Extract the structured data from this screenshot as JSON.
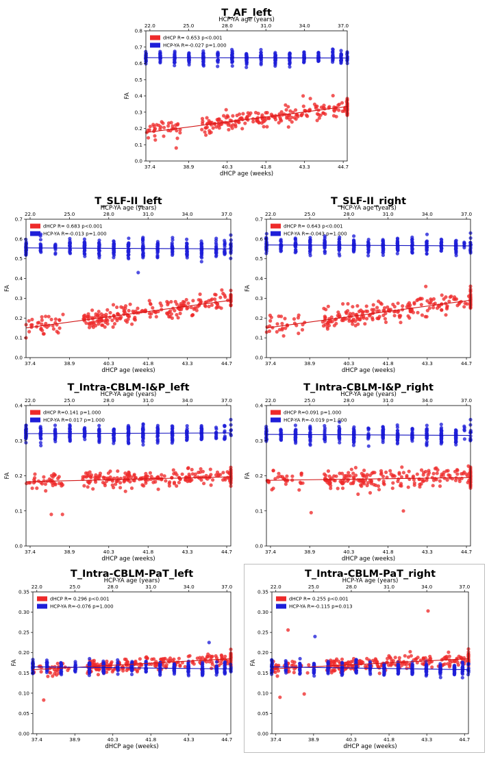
{
  "colors": {
    "dhcp": "#ee2a2a",
    "hcp": "#1f1fd8",
    "dhcp_line": "#d11414",
    "hcp_line": "#1010c0"
  },
  "chart_data": [
    {
      "id": "af_left",
      "type": "scatter",
      "title": "T_AF_left",
      "xlabel": "dHCP age (weeks)",
      "x2label": "HCP-YA age (years)",
      "ylabel": "FA",
      "xlim": [
        37.4,
        44.7
      ],
      "ylim": [
        0.0,
        0.8
      ],
      "xticks": [
        "37.4",
        "38.9",
        "40.3",
        "41.8",
        "43.3",
        "44.7"
      ],
      "x2lim": [
        22.0,
        37.0
      ],
      "x2ticks": [
        "22.0",
        "25.0",
        "28.0",
        "31.0",
        "34.0",
        "37.0"
      ],
      "yticks": [
        "0.0",
        "0.1",
        "0.2",
        "0.3",
        "0.4",
        "0.5",
        "0.6",
        "0.7",
        "0.8"
      ],
      "legend_position": "top-left",
      "series": [
        {
          "name": "dHCP",
          "label": "dHCP R= 0.653 p<0.001",
          "color": "#ee2a2a",
          "fit": [
            0.175,
            0.335
          ],
          "spread": 0.05,
          "n": 260,
          "outliers": [
            [
              38.5,
              0.08
            ],
            [
              43.1,
              0.4
            ]
          ]
        },
        {
          "name": "HCP-YA",
          "label": "HCP-YA R=-0.027 p=1.000",
          "color": "#1f1fd8",
          "fit": [
            0.635,
            0.633
          ],
          "spread": 0.035,
          "n": 380,
          "outliers": [
            [
              44.7,
              0.67
            ]
          ]
        }
      ]
    },
    {
      "id": "slf2_left",
      "type": "scatter",
      "title": "T_SLF-II_left",
      "xlabel": "dHCP age (weeks)",
      "x2label": "HCP-YA age (years)",
      "ylabel": "FA",
      "xlim": [
        37.4,
        44.7
      ],
      "ylim": [
        0.0,
        0.7
      ],
      "xticks": [
        "37.4",
        "38.9",
        "40.3",
        "41.8",
        "43.3",
        "44.7"
      ],
      "x2lim": [
        22.0,
        37.0
      ],
      "x2ticks": [
        "22.0",
        "25.0",
        "28.0",
        "31.0",
        "34.0",
        "37.0"
      ],
      "yticks": [
        "0.0",
        "0.1",
        "0.2",
        "0.3",
        "0.4",
        "0.5",
        "0.6",
        "0.7"
      ],
      "legend_position": "top-left",
      "series": [
        {
          "name": "dHCP",
          "label": "dHCP R= 0.683 p<0.001",
          "color": "#ee2a2a",
          "fit": [
            0.15,
            0.29
          ],
          "spread": 0.045,
          "n": 260,
          "outliers": [
            [
              37.4,
              0.1
            ]
          ]
        },
        {
          "name": "HCP-YA",
          "label": "HCP-YA R=-0.013 p=1.000",
          "color": "#1f1fd8",
          "fit": [
            0.555,
            0.55
          ],
          "spread": 0.04,
          "n": 380,
          "outliers": [
            [
              41.4,
              0.43
            ],
            [
              44.7,
              0.62
            ]
          ]
        }
      ]
    },
    {
      "id": "slf2_right",
      "type": "scatter",
      "title": "T_SLF-II_right",
      "xlabel": "dHCP age (weeks)",
      "x2label": "HCP-YA age (years)",
      "ylabel": "FA",
      "xlim": [
        37.4,
        44.7
      ],
      "ylim": [
        0.0,
        0.7
      ],
      "xticks": [
        "37.4",
        "38.9",
        "40.3",
        "41.8",
        "43.3",
        "44.7"
      ],
      "x2lim": [
        22.0,
        37.0
      ],
      "x2ticks": [
        "22.0",
        "25.0",
        "28.0",
        "31.0",
        "34.0",
        "37.0"
      ],
      "yticks": [
        "0.0",
        "0.1",
        "0.2",
        "0.3",
        "0.4",
        "0.5",
        "0.6",
        "0.7"
      ],
      "legend_position": "top-left",
      "series": [
        {
          "name": "dHCP",
          "label": "dHCP R= 0.643 p<0.001",
          "color": "#ee2a2a",
          "fit": [
            0.15,
            0.29
          ],
          "spread": 0.045,
          "n": 260,
          "outliers": [
            [
              43.1,
              0.36
            ]
          ]
        },
        {
          "name": "HCP-YA",
          "label": "HCP-YA R=-0.043 p=1.000",
          "color": "#1f1fd8",
          "fit": [
            0.57,
            0.565
          ],
          "spread": 0.035,
          "n": 380,
          "outliers": [
            [
              44.7,
              0.63
            ]
          ]
        }
      ]
    },
    {
      "id": "intra_ip_left",
      "type": "scatter",
      "title": "T_Intra-CBLM-I&P_left",
      "xlabel": "dHCP age (weeks)",
      "x2label": "HCP-YA age (years)",
      "ylabel": "FA",
      "xlim": [
        37.4,
        44.7
      ],
      "ylim": [
        0.0,
        0.4
      ],
      "xticks": [
        "37.4",
        "38.9",
        "40.3",
        "41.8",
        "43.3",
        "44.7"
      ],
      "x2lim": [
        22.0,
        37.0
      ],
      "x2ticks": [
        "22.0",
        "25.0",
        "28.0",
        "31.0",
        "34.0",
        "37.0"
      ],
      "yticks": [
        "0.0",
        "0.1",
        "0.2",
        "0.3",
        "0.4"
      ],
      "legend_position": "top-left",
      "series": [
        {
          "name": "dHCP",
          "label": "dHCP R=0.141 p=1.000",
          "color": "#ee2a2a",
          "fit": [
            0.183,
            0.197
          ],
          "spread": 0.022,
          "n": 260,
          "outliers": [
            [
              38.3,
              0.09
            ],
            [
              38.7,
              0.09
            ]
          ]
        },
        {
          "name": "HCP-YA",
          "label": "HCP-YA R=0.017 p=1.000",
          "color": "#1f1fd8",
          "fit": [
            0.32,
            0.322
          ],
          "spread": 0.022,
          "n": 380,
          "outliers": [
            [
              44.7,
              0.36
            ]
          ]
        }
      ]
    },
    {
      "id": "intra_ip_right",
      "type": "scatter",
      "title": "T_Intra-CBLM-I&P_right",
      "xlabel": "dHCP age (weeks)",
      "x2label": "HCP-YA age (years)",
      "ylabel": "FA",
      "xlim": [
        37.4,
        44.7
      ],
      "ylim": [
        0.0,
        0.4
      ],
      "xticks": [
        "37.4",
        "38.9",
        "40.3",
        "41.8",
        "43.3",
        "44.7"
      ],
      "x2lim": [
        22.0,
        37.0
      ],
      "x2ticks": [
        "22.0",
        "25.0",
        "28.0",
        "31.0",
        "34.0",
        "37.0"
      ],
      "yticks": [
        "0.0",
        "0.1",
        "0.2",
        "0.3",
        "0.4"
      ],
      "legend_position": "top-left",
      "series": [
        {
          "name": "dHCP",
          "label": "dHCP R=0.091 p=1.000",
          "color": "#ee2a2a",
          "fit": [
            0.187,
            0.195
          ],
          "spread": 0.025,
          "n": 260,
          "outliers": [
            [
              39.0,
              0.095
            ],
            [
              42.3,
              0.1
            ]
          ]
        },
        {
          "name": "HCP-YA",
          "label": "HCP-YA R=-0.019 p=1.000",
          "color": "#1f1fd8",
          "fit": [
            0.318,
            0.315
          ],
          "spread": 0.022,
          "n": 380,
          "outliers": [
            [
              44.7,
              0.36
            ]
          ]
        }
      ]
    },
    {
      "id": "intra_pat_left",
      "type": "scatter",
      "title": "T_Intra-CBLM-PaT_left",
      "xlabel": "dHCP age (weeks)",
      "x2label": "HCP-YA age (years)",
      "ylabel": "FA",
      "xlim": [
        37.4,
        44.7
      ],
      "ylim": [
        0.0,
        0.35
      ],
      "xticks": [
        "37.4",
        "38.9",
        "40.3",
        "41.8",
        "43.3",
        "44.7"
      ],
      "x2lim": [
        22.0,
        37.0
      ],
      "x2ticks": [
        "22.0",
        "25.0",
        "28.0",
        "31.0",
        "34.0",
        "37.0"
      ],
      "yticks": [
        "0.00",
        "0.05",
        "0.10",
        "0.15",
        "0.20",
        "0.25",
        "0.30",
        "0.35"
      ],
      "legend_position": "top-left",
      "series": [
        {
          "name": "dHCP",
          "label": "dHCP R= 0.296 p<0.001",
          "color": "#ee2a2a",
          "fit": [
            0.158,
            0.185
          ],
          "spread": 0.015,
          "n": 260,
          "outliers": [
            [
              37.8,
              0.083
            ]
          ]
        },
        {
          "name": "HCP-YA",
          "label": "HCP-YA R=-0.076 p=1.000",
          "color": "#1f1fd8",
          "fit": [
            0.165,
            0.16
          ],
          "spread": 0.015,
          "n": 380,
          "outliers": [
            [
              43.9,
              0.225
            ]
          ]
        }
      ]
    },
    {
      "id": "intra_pat_right",
      "type": "scatter",
      "title": "T_Intra-CBLM-PaT_right",
      "xlabel": "dHCP age (weeks)",
      "x2label": "HCP-YA age (years)",
      "ylabel": "FA",
      "xlim": [
        37.4,
        44.7
      ],
      "ylim": [
        0.0,
        0.35
      ],
      "xticks": [
        "37.4",
        "38.9",
        "40.3",
        "41.8",
        "43.3",
        "44.7"
      ],
      "x2lim": [
        22.0,
        37.0
      ],
      "x2ticks": [
        "22.0",
        "25.0",
        "28.0",
        "31.0",
        "34.0",
        "37.0"
      ],
      "yticks": [
        "0.00",
        "0.05",
        "0.10",
        "0.15",
        "0.20",
        "0.25",
        "0.30",
        "0.35"
      ],
      "legend_position": "top-left",
      "series": [
        {
          "name": "dHCP",
          "label": "dHCP R= 0.255 p<0.001",
          "color": "#ee2a2a",
          "fit": [
            0.16,
            0.185
          ],
          "spread": 0.016,
          "n": 260,
          "outliers": [
            [
              43.2,
              0.303
            ],
            [
              37.7,
              0.09
            ],
            [
              38.6,
              0.098
            ],
            [
              38.0,
              0.256
            ]
          ]
        },
        {
          "name": "HCP-YA",
          "label": "HCP-YA R=-0.115 p=0.013",
          "color": "#1f1fd8",
          "fit": [
            0.165,
            0.158
          ],
          "spread": 0.015,
          "n": 380,
          "outliers": [
            [
              39.0,
              0.24
            ]
          ]
        }
      ]
    }
  ]
}
